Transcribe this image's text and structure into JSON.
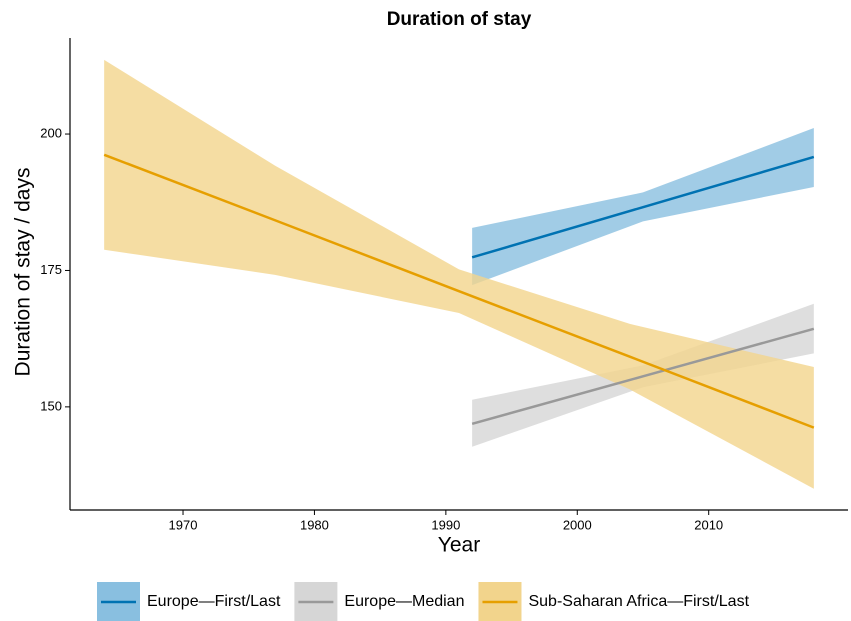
{
  "chart_data": {
    "type": "line",
    "title": "Duration of stay",
    "x_label": "Year",
    "y_label": "Duration of stay / days",
    "xlim": [
      1961.4,
      2020.6
    ],
    "ylim": [
      131.1,
      217.6
    ],
    "xticks": [
      1970,
      1980,
      1990,
      2000,
      2010
    ],
    "yticks": [
      150,
      175,
      200
    ],
    "legend": "bottom",
    "series": [
      {
        "name": "Europe—First/Last",
        "color": "#0072b2",
        "band_color": "#89bfe0",
        "x": [
          1992,
          2005,
          2018
        ],
        "values": [
          177.4,
          186.6,
          195.8
        ],
        "lower": [
          172.3,
          184,
          190.3
        ],
        "upper": [
          182.8,
          189.3,
          201.1
        ]
      },
      {
        "name": "Europe—Median",
        "color": "#999999",
        "band_color": "#d6d6d6",
        "x": [
          1992,
          2005,
          2018
        ],
        "values": [
          146.9,
          155.6,
          164.3
        ],
        "lower": [
          142.7,
          153.6,
          159.8
        ],
        "upper": [
          151.3,
          157.6,
          168.9
        ]
      },
      {
        "name": "Sub-Saharan Africa—First/Last",
        "color": "#e69f00",
        "band_color": "#f2d48c",
        "x": [
          1964,
          1977,
          1991,
          2004,
          2018
        ],
        "values": [
          196.2,
          184.2,
          171.2,
          159.2,
          146.2
        ],
        "lower": [
          178.8,
          174.2,
          167.2,
          153.2,
          135.0
        ],
        "upper": [
          213.6,
          194.2,
          175.2,
          165.2,
          157.3
        ]
      }
    ]
  }
}
